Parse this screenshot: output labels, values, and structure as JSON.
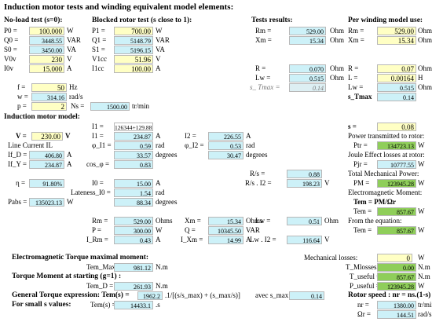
{
  "title": "Induction motor tests and winding equivalent model elements:",
  "sections": {
    "no_load_test": [
      "No-load test (s=0):",
      "P0 =",
      "100.000",
      "W",
      "Q0 =",
      "3448.55",
      "VAR",
      "S0 =",
      "3450.00",
      "VA",
      "V0v",
      "230",
      "V",
      "I0v",
      "15.000",
      "A"
    ],
    "blocked_rotor_test": [
      "Blocked rotor test (s close to 1):",
      "P1 =",
      "700.00",
      "W",
      "Q1 =",
      "5148.79",
      "VAR",
      "S1 =",
      "5196.15",
      "VA",
      "V1cc",
      "51.96",
      "V",
      "I1cc",
      "100.00",
      "A"
    ],
    "tests_results": [
      "Tests results:",
      "Rm =",
      "529.00",
      "Ohm",
      "Xm =",
      "15.34",
      "Ohm",
      "R =",
      "0.070",
      "Ohm",
      "Lw =",
      "0.515",
      "Ohm",
      "s_ Tmax =",
      "0.14"
    ],
    "per_winding_model": [
      "Per winding model use:",
      "Rm =",
      "529.00",
      "Ohm",
      "Xm =",
      "15.34",
      "Ohm",
      "R =",
      "0.07",
      "Ohm",
      "L =",
      "0.00164",
      "H",
      "Lw =",
      "0.515",
      "Ohm",
      "s_Tmax",
      "0.14"
    ],
    "supply": [
      "f =",
      "50",
      "Hz",
      "w =",
      "314.16",
      "rad/s",
      "p =",
      "2",
      "Ns =",
      "1500.00",
      "tr/min"
    ],
    "motor_model": [
      "Induction motor model:",
      "I1 =",
      "126344+129.88i",
      "V =",
      "230.00",
      "V",
      "I1 =",
      "234.87",
      "A",
      "I2 =",
      "226.55",
      "A",
      "Line Current IL",
      "φ_I1 =",
      "0.59",
      "rad",
      "φ_I2 =",
      "0.53",
      "rad",
      "If_D =",
      "406.80",
      "A",
      "33.57",
      "degrees",
      "30.47",
      "degrees",
      "If_Y =",
      "234.87",
      "A",
      "cos_φ =",
      "0.83",
      "R/s =",
      "0.88",
      "η =",
      "91.80%",
      "I0 =",
      "15.00",
      "A",
      "R/s . I2 =",
      "198.23",
      "V",
      "Lateness_I0 =",
      "1.54",
      "rad",
      "Pabs =",
      "135023.13",
      "W",
      "88.34",
      "degrees",
      "Rm =",
      "529.00",
      "Ohms",
      "Xm =",
      "15.34",
      "Ohms",
      "Lw =",
      "0.51",
      "Ohm",
      "P =",
      "300.00",
      "W",
      "Q =",
      "10345.50",
      "VAR",
      "I_Rm =",
      "0.43",
      "A",
      "I_Xm =",
      "14.99",
      "A",
      "Lw . I2 =",
      "116.64",
      "V"
    ],
    "right_panel": [
      "s =",
      "0.08",
      "Power transmitted to rotor:",
      "Ptr =",
      "134723.13",
      "W",
      "Joule Effect losses at rotor:",
      "Pjr =",
      "10777.55",
      "W",
      "Total Mechanical Power:",
      "PM =",
      "123945.28",
      "W",
      "Electromagnetic Moment:",
      "Tem = PM/Ωr",
      "Tem =",
      "857.67",
      "W",
      "From the equation:",
      "Tem =",
      "857.67",
      "W"
    ],
    "torque": [
      "Electromagnetic Torque maximal moment:",
      "Tem_Max =",
      "981.12",
      "N.m",
      "Torque Moment at starting (g=1) :",
      "Tem_D =",
      "261.93",
      "N.m",
      "General Torque expression: Tem(s) =",
      "1962.2",
      ".1/[(s/s_max) + (s_max/s)]",
      "avec s_max =",
      "0.14",
      "For small s values:",
      "Tem(s) =",
      "14433.1",
      ".s",
      "Mechanical losses:",
      "0",
      "W",
      "T_Mlosses =",
      "0.00",
      "N.m",
      "T_useful =",
      "857.67",
      "N.m",
      "P_useful =",
      "123945.28",
      "W",
      "Rotor speed : nr = ns.(1-s)",
      "nr =",
      "1380.00",
      "tr/min",
      "Ωr =",
      "144.51",
      "rad/s"
    ]
  }
}
